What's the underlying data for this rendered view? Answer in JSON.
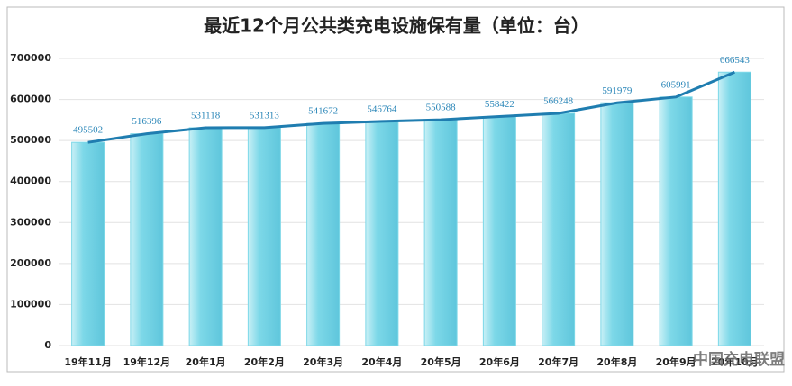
{
  "chart_data": {
    "type": "bar",
    "title": "最近12个月公共类充电设施保有量（单位：台）",
    "categories": [
      "19年11月",
      "19年12月",
      "20年1月",
      "20年2月",
      "20年3月",
      "20年4月",
      "20年5月",
      "20年6月",
      "20年7月",
      "20年8月",
      "20年9月",
      "20年10月"
    ],
    "values": [
      495502,
      516396,
      531118,
      531313,
      541672,
      546764,
      550588,
      558422,
      566248,
      591979,
      605991,
      666543
    ],
    "color": "#7dd8e8",
    "line_color": "#1f7db0",
    "ylim": [
      0,
      700000
    ],
    "yticks": [
      0,
      100000,
      200000,
      300000,
      400000,
      500000,
      600000,
      700000
    ],
    "grid": true,
    "watermark": "中国充电联盟"
  }
}
